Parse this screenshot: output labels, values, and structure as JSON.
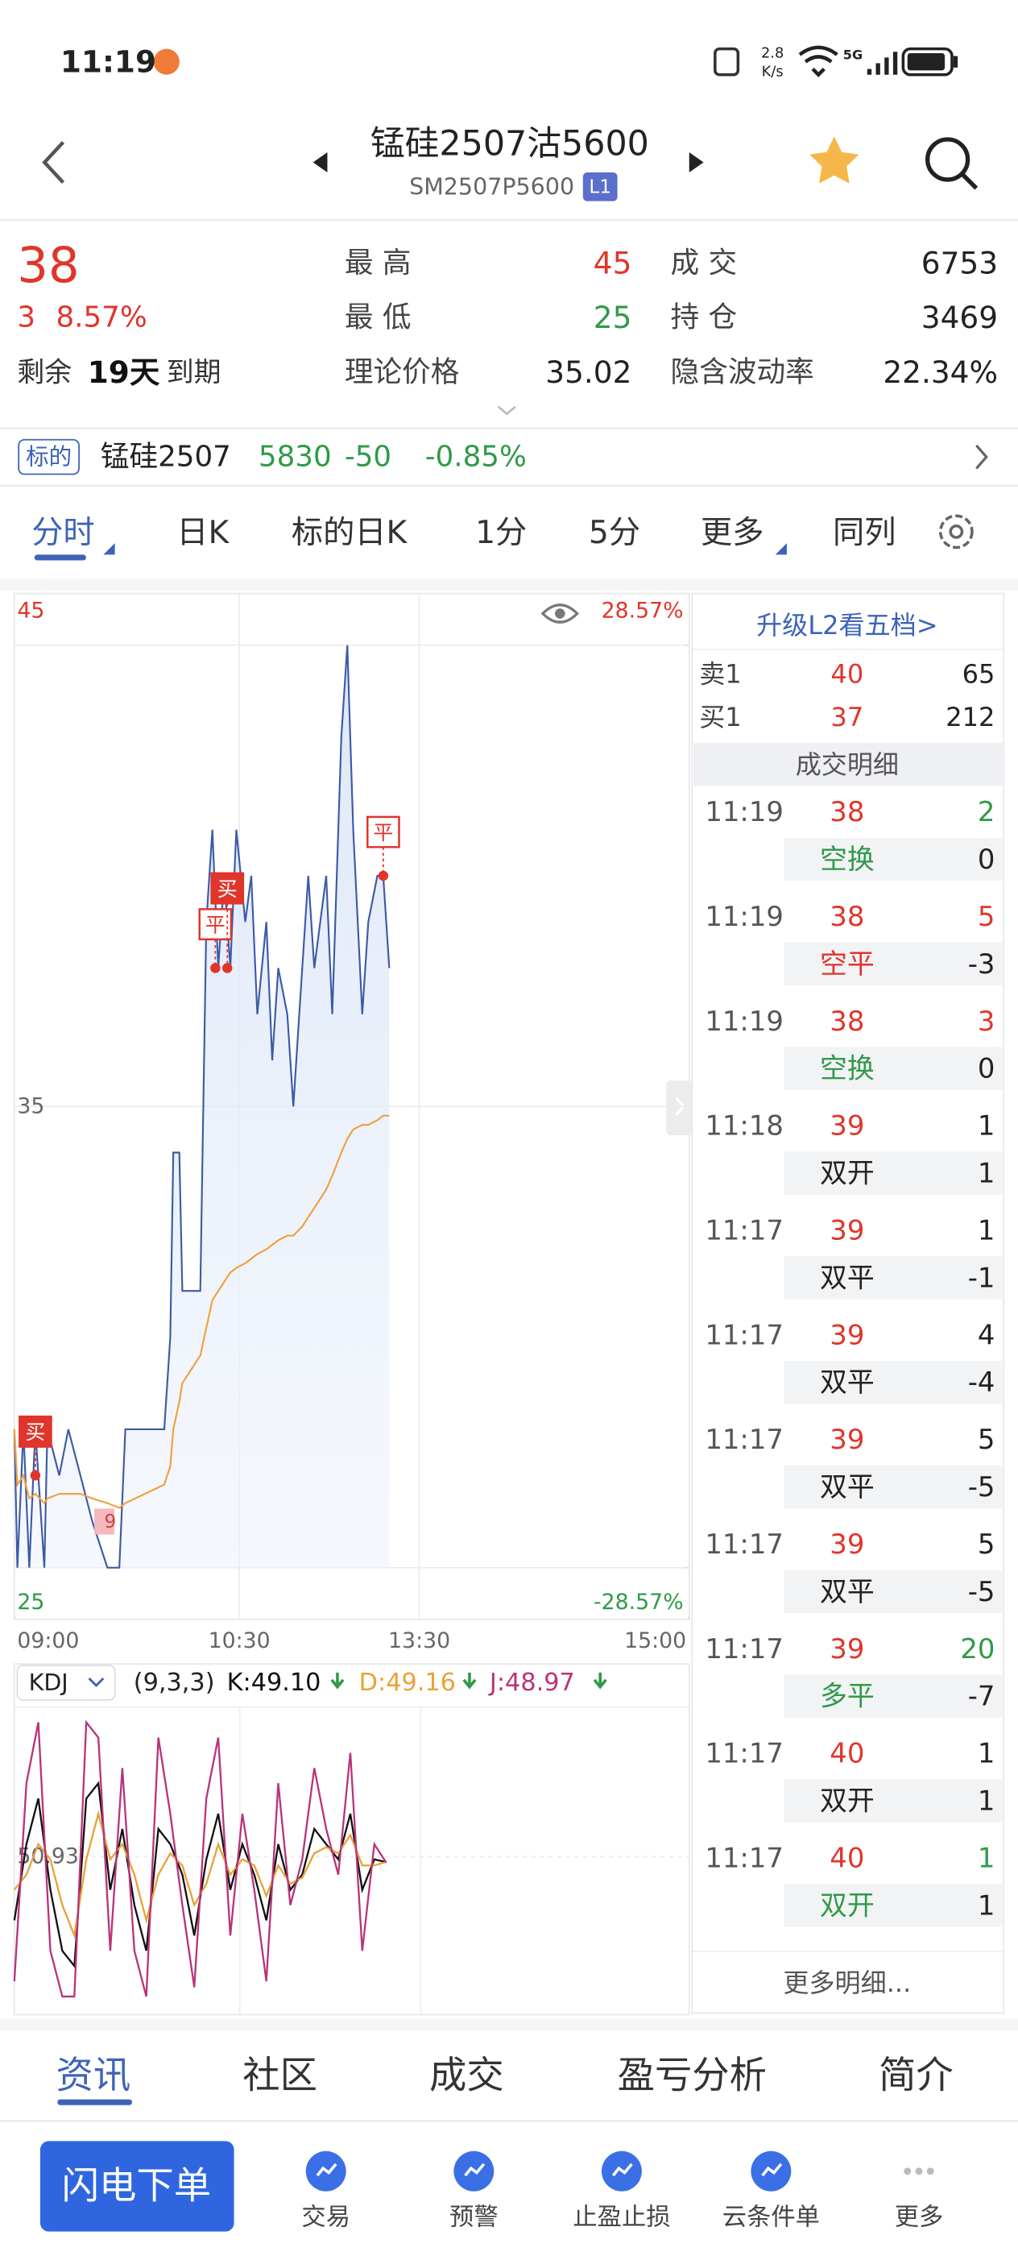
{
  "status_bar": {
    "time": "11:19",
    "net_speed": "2.8",
    "net_speed_unit": "K/s",
    "network": "5G"
  },
  "header": {
    "title": "锰硅2507沽5600",
    "code": "SM2507P5600",
    "level": "L1"
  },
  "quote": {
    "price": "38",
    "change": "3",
    "change_pct": "8.57%",
    "expiry_prefix": "剩余",
    "expiry_days": "19天",
    "expiry_suffix": "到期",
    "stats": [
      {
        "label": "最 高",
        "value": "45",
        "tone": "red"
      },
      {
        "label": "成 交",
        "value": "6753",
        "tone": "black"
      },
      {
        "label": "最 低",
        "value": "25",
        "tone": "green"
      },
      {
        "label": "持 仓",
        "value": "3469",
        "tone": "black"
      },
      {
        "label": "理论价格",
        "value": "35.02",
        "tone": "black"
      },
      {
        "label": "隐含波动率",
        "value": "22.34%",
        "tone": "black"
      }
    ]
  },
  "underlying": {
    "tag": "标的",
    "name": "锰硅2507",
    "price": "5830",
    "change": "-50",
    "change_pct": "-0.85%"
  },
  "tabs": [
    "分时",
    "日K",
    "标的日K",
    "1分",
    "5分",
    "更多",
    "同列"
  ],
  "chart_data": [
    {
      "type": "line",
      "x": [
        0,
        1,
        3,
        5,
        7,
        10,
        11,
        15,
        18,
        22,
        26,
        31,
        35,
        37,
        50,
        52,
        53,
        55,
        56,
        62,
        64,
        66,
        68,
        70,
        72,
        74,
        77,
        79,
        81,
        84,
        86,
        88,
        91,
        93,
        96,
        98,
        100,
        104,
        106,
        109,
        111,
        113,
        116,
        118,
        121,
        123,
        125
      ],
      "series": [
        {
          "color": "#3c5aa6",
          "values": [
            28,
            25,
            28,
            25,
            28,
            25,
            28,
            27,
            28,
            27,
            26,
            25,
            25,
            28,
            28,
            30,
            34,
            34,
            31,
            31,
            39,
            41,
            38,
            40,
            38,
            41,
            39,
            40,
            37,
            39,
            36,
            38,
            37,
            35,
            38,
            40,
            38,
            40,
            37,
            43,
            45,
            41,
            37,
            39,
            40,
            40,
            38
          ]
        },
        {
          "color": "#f0a040",
          "values": [
            28,
            26.8,
            27,
            26.5,
            26.6,
            26.4,
            26.5,
            26.6,
            26.6,
            26.6,
            26.5,
            26.4,
            26.3,
            26.4,
            26.8,
            27.2,
            28,
            28.6,
            29,
            29.6,
            30.2,
            30.8,
            31,
            31.2,
            31.4,
            31.5,
            31.6,
            31.7,
            31.8,
            31.9,
            32,
            32.1,
            32.2,
            32.2,
            32.4,
            32.6,
            32.8,
            33.2,
            33.5,
            34,
            34.3,
            34.5,
            34.6,
            34.6,
            34.7,
            34.8,
            34.8
          ]
        }
      ],
      "xlim": [
        0,
        225
      ],
      "xticks": [
        {
          "value": 0,
          "label": "09:00"
        },
        {
          "value": 75,
          "label": "10:30"
        },
        {
          "value": 135,
          "label": "13:30"
        },
        {
          "value": 225,
          "label": "15:00"
        }
      ],
      "ylim": [
        25,
        45
      ],
      "yticks": [
        25,
        35,
        45
      ],
      "y2lim": [
        -28.57,
        28.57
      ],
      "y2ticks": [
        {
          "value": -28.57,
          "label": "-28.57%"
        },
        {
          "value": 28.57,
          "label": "28.57%"
        }
      ],
      "grid": true,
      "annotations": [
        {
          "label": "买",
          "x": 7,
          "y": 27,
          "filled": true
        },
        {
          "label": "9",
          "x": 30,
          "y": 26,
          "muted": true
        },
        {
          "label": "平",
          "x": 67,
          "y": 38
        },
        {
          "label": "买",
          "x": 71,
          "y": 38,
          "filled": true
        },
        {
          "label": "平",
          "x": 123,
          "y": 40
        }
      ]
    },
    {
      "type": "line",
      "indicator": "KDJ",
      "params": "(9,3,3)",
      "x": [
        0,
        4,
        8,
        12,
        16,
        20,
        24,
        28,
        32,
        36,
        40,
        44,
        48,
        52,
        56,
        60,
        64,
        68,
        72,
        76,
        80,
        84,
        88,
        92,
        96,
        100,
        104,
        108,
        112,
        116,
        120,
        124
      ],
      "series": [
        {
          "label": "K:49.10",
          "color": "#111111",
          "values": [
            30,
            55,
            70,
            40,
            20,
            15,
            70,
            75,
            40,
            60,
            35,
            20,
            60,
            55,
            45,
            25,
            50,
            65,
            40,
            55,
            45,
            30,
            55,
            40,
            45,
            60,
            55,
            50,
            65,
            40,
            50,
            49.1
          ]
        },
        {
          "label": "D:49.16",
          "color": "#e8a23a",
          "values": [
            40,
            45,
            55,
            50,
            35,
            25,
            50,
            65,
            50,
            55,
            45,
            30,
            45,
            52,
            48,
            35,
            42,
            55,
            45,
            50,
            48,
            38,
            48,
            42,
            44,
            52,
            54,
            52,
            58,
            48,
            48,
            49.16
          ]
        },
        {
          "label": "J:48.97",
          "color": "#b8347a",
          "values": [
            10,
            75,
            95,
            20,
            5,
            5,
            95,
            90,
            20,
            80,
            20,
            5,
            90,
            65,
            35,
            8,
            70,
            90,
            25,
            65,
            40,
            10,
            75,
            35,
            50,
            80,
            60,
            45,
            85,
            20,
            55,
            48.97
          ]
        }
      ],
      "xlim": [
        0,
        225
      ],
      "ylim": [
        0,
        100
      ],
      "yticks": [
        50.93
      ],
      "grid": true
    }
  ],
  "order_book": {
    "upgrade": "升级L2看五档>",
    "rows": [
      {
        "side": "卖1",
        "price": "40",
        "volume": "65"
      },
      {
        "side": "买1",
        "price": "37",
        "volume": "212"
      }
    ]
  },
  "trades": {
    "title": "成交明细",
    "more": "更多明细...",
    "rows": [
      {
        "time": "11:19",
        "price": "38",
        "volume": "2",
        "volume_tone": "green",
        "type": "空换",
        "type_tone": "green",
        "oi_change": "0"
      },
      {
        "time": "11:19",
        "price": "38",
        "volume": "5",
        "volume_tone": "red",
        "type": "空平",
        "type_tone": "red",
        "oi_change": "-3"
      },
      {
        "time": "11:19",
        "price": "38",
        "volume": "3",
        "volume_tone": "red",
        "type": "空换",
        "type_tone": "green",
        "oi_change": "0"
      },
      {
        "time": "11:18",
        "price": "39",
        "volume": "1",
        "volume_tone": "black",
        "type": "双开",
        "type_tone": "black",
        "oi_change": "1"
      },
      {
        "time": "11:17",
        "price": "39",
        "volume": "1",
        "volume_tone": "black",
        "type": "双平",
        "type_tone": "black",
        "oi_change": "-1"
      },
      {
        "time": "11:17",
        "price": "39",
        "volume": "4",
        "volume_tone": "black",
        "type": "双平",
        "type_tone": "black",
        "oi_change": "-4"
      },
      {
        "time": "11:17",
        "price": "39",
        "volume": "5",
        "volume_tone": "black",
        "type": "双平",
        "type_tone": "black",
        "oi_change": "-5"
      },
      {
        "time": "11:17",
        "price": "39",
        "volume": "5",
        "volume_tone": "black",
        "type": "双平",
        "type_tone": "black",
        "oi_change": "-5"
      },
      {
        "time": "11:17",
        "price": "39",
        "volume": "20",
        "volume_tone": "green",
        "type": "多平",
        "type_tone": "green",
        "oi_change": "-7"
      },
      {
        "time": "11:17",
        "price": "40",
        "volume": "1",
        "volume_tone": "black",
        "type": "双开",
        "type_tone": "black",
        "oi_change": "1"
      },
      {
        "time": "11:17",
        "price": "40",
        "volume": "1",
        "volume_tone": "green",
        "type": "双开",
        "type_tone": "green",
        "oi_change": "1"
      }
    ]
  },
  "bottom_tabs": [
    "资讯",
    "社区",
    "成交",
    "盈亏分析",
    "简介"
  ],
  "actions": {
    "primary": "闪电下单",
    "items": [
      "交易",
      "预警",
      "止盈止损",
      "云条件单",
      "更多"
    ]
  }
}
